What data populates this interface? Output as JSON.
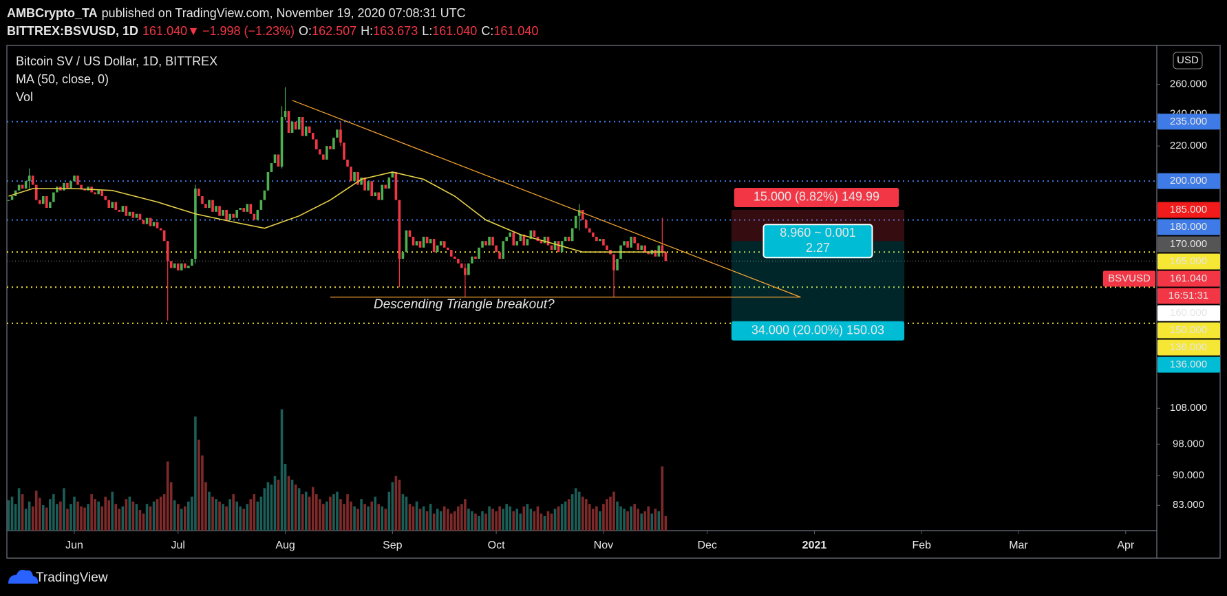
{
  "header": {
    "author": "AMBCrypto_TA",
    "published": "published on TradingView.com, November 19, 2020 07:08:31 UTC",
    "symbol": "BITTREX:BSVUSD, 1D",
    "last": "161.040",
    "arrow": "▼",
    "change": "−1.998 (−1.23%)",
    "ohlc": [
      {
        "label": "O:",
        "value": "162.507"
      },
      {
        "label": "H:",
        "value": "163.673"
      },
      {
        "label": "L:",
        "value": "161.040"
      },
      {
        "label": "C:",
        "value": "161.040"
      }
    ]
  },
  "chart_data": {
    "type": "candlestick",
    "title": "Bitcoin SV / US Dollar, 1D, BITTREX",
    "currency": "USD",
    "log_scale": true,
    "xlim": [
      -0.5,
      332
    ],
    "ylim": [
      77.5,
      289
    ],
    "xticks": [
      {
        "value": 19,
        "label": "Jun"
      },
      {
        "value": 49,
        "label": "Jul"
      },
      {
        "value": 80,
        "label": "Aug"
      },
      {
        "value": 111,
        "label": "Sep"
      },
      {
        "value": 141,
        "label": "Oct"
      },
      {
        "value": 172,
        "label": "Nov"
      },
      {
        "value": 202,
        "label": "Dec"
      },
      {
        "value": 233,
        "label": "2021"
      },
      {
        "value": 264,
        "label": "Feb"
      },
      {
        "value": 292,
        "label": "Mar"
      },
      {
        "value": 323,
        "label": "Apr"
      }
    ],
    "yticks": [
      {
        "value": 260,
        "label": "260.000"
      },
      {
        "value": 240,
        "label": "240.000"
      },
      {
        "value": 220,
        "label": "220.000"
      },
      {
        "value": 108,
        "label": "108.000"
      },
      {
        "value": 98,
        "label": "98.000"
      },
      {
        "value": 90,
        "label": "90.000"
      },
      {
        "value": 83,
        "label": "83.000"
      }
    ],
    "series": [
      {
        "name": "BSVUSD",
        "up_color": "#4caf50",
        "down_color": "#f23645",
        "values": [
          190,
          192,
          195,
          198,
          196,
          200,
          203,
          198,
          190,
          188,
          192,
          186,
          189,
          194,
          197,
          195,
          199,
          196,
          200,
          203,
          198,
          196,
          195,
          197,
          194,
          193,
          195,
          192,
          190,
          186,
          189,
          185,
          184,
          187,
          182,
          184,
          181,
          183,
          180,
          178,
          181,
          177,
          179,
          176,
          175,
          170,
          161,
          158,
          160,
          157,
          160,
          158,
          159,
          162,
          196,
          192,
          188,
          186,
          190,
          184,
          187,
          182,
          185,
          180,
          183,
          181,
          185,
          186,
          184,
          188,
          183,
          180,
          185,
          190,
          195,
          205,
          210,
          215,
          208,
          238,
          242,
          228,
          235,
          230,
          238,
          226,
          232,
          228,
          224,
          218,
          215,
          212,
          220,
          218,
          225,
          230,
          222,
          212,
          208,
          200,
          205,
          198,
          202,
          195,
          200,
          192,
          194,
          190,
          198,
          196,
          202,
          205,
          190,
          162,
          165,
          175,
          172,
          168,
          170,
          167,
          172,
          169,
          171,
          165,
          168,
          170,
          167,
          166,
          163,
          162,
          160,
          158,
          155,
          160,
          163,
          162,
          167,
          170,
          168,
          172,
          168,
          165,
          162,
          170,
          172,
          174,
          168,
          170,
          173,
          168,
          171,
          175,
          172,
          170,
          169,
          172,
          168,
          166,
          170,
          165,
          170,
          172,
          170,
          176,
          182,
          185,
          180,
          176,
          174,
          172,
          170,
          171,
          168,
          166,
          164,
          157,
          162,
          168,
          170,
          167,
          172,
          169,
          166,
          168,
          165,
          164,
          166,
          163,
          168,
          165,
          161.04
        ],
        "wicks": [
          {
            "index": 6,
            "high": 207,
            "low": 196
          },
          {
            "index": 46,
            "high": 170,
            "low": 137
          },
          {
            "index": 54,
            "high": 198,
            "low": 160
          },
          {
            "index": 79,
            "high": 245,
            "low": 207
          },
          {
            "index": 80,
            "high": 258,
            "low": 236
          },
          {
            "index": 96,
            "high": 235,
            "low": 220
          },
          {
            "index": 113,
            "high": 190,
            "low": 150
          },
          {
            "index": 132,
            "high": 160,
            "low": 146
          },
          {
            "index": 165,
            "high": 188,
            "low": 175
          },
          {
            "index": 175,
            "high": 164,
            "low": 146
          },
          {
            "index": 189,
            "high": 181,
            "low": 163
          }
        ]
      },
      {
        "name": "MA (50, close, 0)",
        "color": "#e8d24a",
        "x": [
          0,
          7,
          19,
          30,
          43,
          54,
          65,
          74,
          84,
          93,
          102,
          111,
          120,
          129,
          138,
          148,
          157,
          166,
          175,
          184,
          190
        ],
        "values": [
          192,
          196,
          196,
          195,
          189,
          183,
          179,
          176,
          182,
          190,
          201,
          205,
          201,
          192,
          180,
          173,
          169,
          165,
          165,
          165,
          165
        ]
      },
      {
        "name": "Vol",
        "up_color": "#1b5e58",
        "down_color": "#7f2a2a",
        "ylim": [
          0,
          400
        ],
        "values": [
          25,
          28,
          22,
          35,
          30,
          18,
          24,
          20,
          33,
          27,
          21,
          19,
          26,
          30,
          22,
          24,
          35,
          18,
          22,
          28,
          24,
          20,
          19,
          22,
          30,
          26,
          24,
          20,
          28,
          25,
          32,
          22,
          18,
          20,
          26,
          28,
          24,
          22,
          17,
          14,
          22,
          20,
          24,
          26,
          28,
          30,
          57,
          40,
          25,
          22,
          18,
          20,
          24,
          28,
          94,
          75,
          62,
          40,
          32,
          28,
          26,
          24,
          22,
          20,
          26,
          30,
          24,
          20,
          18,
          22,
          26,
          30,
          24,
          28,
          35,
          40,
          38,
          45,
          42,
          100,
          55,
          45,
          42,
          38,
          35,
          30,
          32,
          28,
          36,
          30,
          26,
          22,
          24,
          28,
          30,
          32,
          26,
          22,
          30,
          24,
          20,
          18,
          26,
          22,
          20,
          24,
          28,
          22,
          20,
          18,
          32,
          40,
          45,
          42,
          30,
          28,
          22,
          20,
          24,
          18,
          20,
          16,
          22,
          14,
          18,
          16,
          20,
          18,
          14,
          16,
          20,
          22,
          26,
          18,
          16,
          14,
          12,
          16,
          14,
          20,
          18,
          16,
          20,
          18,
          22,
          20,
          16,
          18,
          14,
          20,
          22,
          18,
          16,
          20,
          14,
          12,
          16,
          14,
          18,
          20,
          22,
          24,
          26,
          30,
          35,
          32,
          28,
          26,
          22,
          18,
          20,
          16,
          22,
          26,
          28,
          32,
          24,
          20,
          18,
          16,
          20,
          22,
          18,
          14,
          16,
          20,
          14,
          18,
          16,
          53,
          12
        ]
      }
    ],
    "levels": [
      {
        "value": 235,
        "label": "235.000",
        "color": "#3f7be6",
        "text_color": "#ffffff",
        "line_color": "#3f7be6",
        "line_width": 2
      },
      {
        "value": 200,
        "label": "200.000",
        "color": "#3f7be6",
        "text_color": "#ffffff",
        "line_color": "#3f7be6",
        "line_width": 2
      },
      {
        "value": 185,
        "label": "185.000",
        "color": "#f21b1b",
        "text_color": "#ffffff",
        "line_color": null,
        "line_width": 0
      },
      {
        "value": 180,
        "label": "180.000",
        "color": "#3f7be6",
        "text_color": "#ffffff",
        "line_color": "#3f7be6",
        "line_width": 2
      },
      {
        "value": 170,
        "label": "170.000",
        "color": "#555555",
        "text_color": "#ffffff",
        "line_color": null,
        "line_width": 0
      },
      {
        "value": 165,
        "label": "165.000",
        "color": "#f5e733",
        "text_color": "#000000",
        "line_color": "#f5e733",
        "line_width": 2
      },
      {
        "value": 161.04,
        "label": "161.040",
        "color": "#f23645",
        "text_color": "#ffffff",
        "line_color": "#8a8a8a",
        "line_width": 1,
        "countdown": "16:51:31"
      },
      {
        "value": 160,
        "label": "160.000",
        "color": "#ffffff",
        "text_color": "#000000",
        "line_color": null,
        "line_width": 0
      },
      {
        "value": 150,
        "label": "150.000",
        "color": "#f5e733",
        "text_color": "#000000",
        "line_color": "#f5e733",
        "line_width": 2
      },
      {
        "value": 136,
        "label": "136.000",
        "color": "#f5e733",
        "text_color": "#000000",
        "line_color": "#f5e733",
        "line_width": 2
      },
      {
        "value": 136,
        "label": "136.000",
        "color": "#00bcd4",
        "text_color": "#000000",
        "line_color": null,
        "line_width": 0
      }
    ],
    "position": {
      "x": [
        209,
        259
      ],
      "stop": 185,
      "entry": 170,
      "target": 136,
      "stop_color": "#f23645",
      "target_color": "#00bcd4",
      "stop_label": "15.000 (8.82%) 149.99",
      "target_label": "34.000 (20.00%) 150.03",
      "center_label": [
        "8.960 ~ 0.001",
        "2.27"
      ]
    },
    "drawings": [
      {
        "color": "#f0a030",
        "x": [
          82,
          229
        ],
        "values": [
          249,
          146
        ]
      },
      {
        "color": "#f0a030",
        "x": [
          93,
          229
        ],
        "values": [
          146,
          146
        ]
      }
    ],
    "annotation": "Descending Triangle breakout?"
  },
  "footer": {
    "brand": "TradingView"
  }
}
